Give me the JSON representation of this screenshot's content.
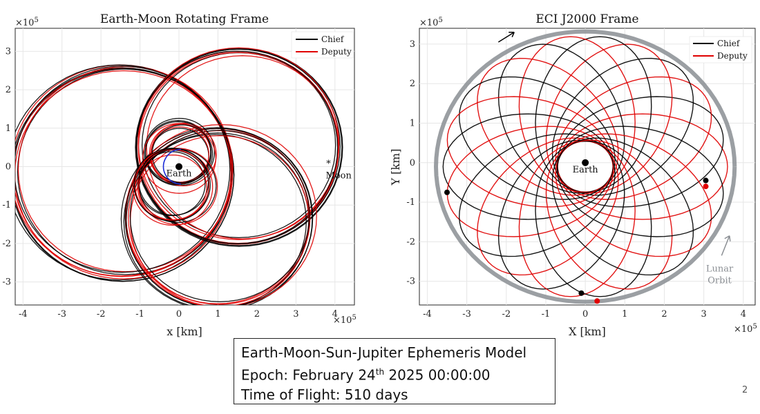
{
  "chart_data": [
    {
      "type": "line",
      "title": "Earth-Moon Rotating Frame",
      "xlabel": "x [km]",
      "ylabel": "",
      "x_exponent": "×10",
      "x_exponent_power": "5",
      "y_exponent": "×10",
      "y_exponent_power": "5",
      "xlim": [
        -4.2,
        4.5
      ],
      "ylim": [
        -3.6,
        3.6
      ],
      "xticks": [
        "-4",
        "-3",
        "-2",
        "-1",
        "0",
        "1",
        "2",
        "3",
        "4"
      ],
      "yticks": [
        "3",
        "2",
        "1",
        "0",
        "-1",
        "-2",
        "-3"
      ],
      "grid": true,
      "legend_position": "top-right",
      "series": [
        {
          "name": "Chief",
          "color": "#000000"
        },
        {
          "name": "Deputy",
          "color": "#e00000"
        }
      ],
      "annotations": [
        {
          "label": "Earth",
          "x": 0,
          "y": 0
        },
        {
          "label": "Moon",
          "x": 3.8,
          "y": 0
        }
      ]
    },
    {
      "type": "line",
      "title": "ECI J2000 Frame",
      "xlabel": "X [km]",
      "ylabel": "Y [km]",
      "x_exponent": "×10",
      "x_exponent_power": "5",
      "y_exponent": "×10",
      "y_exponent_power": "5",
      "xlim": [
        -4.2,
        4.3
      ],
      "ylim": [
        -3.6,
        3.4
      ],
      "xticks": [
        "-4",
        "-3",
        "-2",
        "-1",
        "0",
        "1",
        "2",
        "3",
        "4"
      ],
      "yticks": [
        "3",
        "2",
        "1",
        "0",
        "-1",
        "-2",
        "-3"
      ],
      "grid": true,
      "legend_position": "top-right",
      "series": [
        {
          "name": "Chief",
          "color": "#000000"
        },
        {
          "name": "Deputy",
          "color": "#e00000"
        }
      ],
      "annotations": [
        {
          "label": "Earth",
          "x": 0,
          "y": 0
        },
        {
          "label": "Lunar",
          "x": 3.4,
          "y": -2.7
        },
        {
          "label": "Orbit",
          "x": 3.4,
          "y": -3.0
        }
      ],
      "lunar_orbit_color": "#8a8e93"
    }
  ],
  "caption": {
    "line1": "Earth-Moon-Sun-Jupiter Ephemeris Model",
    "line2_prefix": "Epoch: February 24",
    "line2_sup": "th",
    "line2_suffix": " 2025 00:00:00",
    "line3": "Time of Flight: 510 days"
  },
  "page_number": "2"
}
